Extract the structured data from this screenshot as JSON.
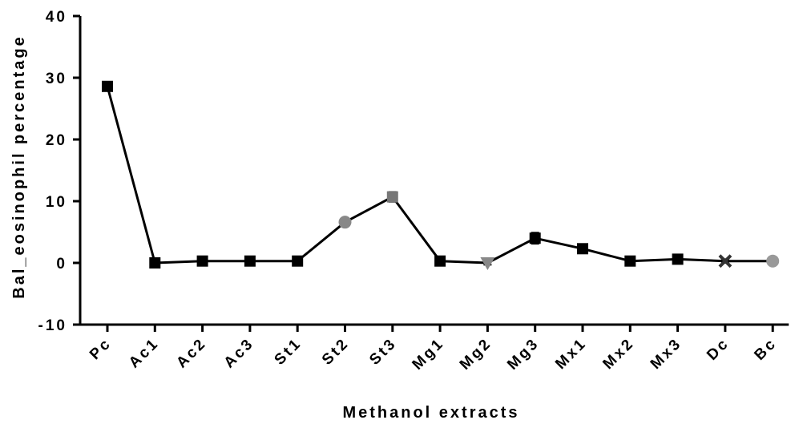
{
  "chart_data": {
    "type": "line",
    "title": "",
    "xlabel": "Methanol extracts",
    "ylabel": "Bal_eosinophil percentage",
    "ylim": [
      -10,
      40
    ],
    "yticks": [
      -10,
      0,
      10,
      20,
      30,
      40
    ],
    "categories": [
      "Pc",
      "Ac1",
      "Ac2",
      "Ac3",
      "St1",
      "St2",
      "St3",
      "Mg1",
      "Mg2",
      "Mg3",
      "Mx1",
      "Mx2",
      "Mx3",
      "Dc",
      "Bc"
    ],
    "values": [
      28.6,
      0.0,
      0.3,
      0.3,
      0.3,
      6.6,
      10.7,
      0.3,
      0.0,
      4.0,
      2.3,
      0.3,
      0.6,
      0.3,
      0.3
    ],
    "errors": [
      0.5,
      0.4,
      0.4,
      0.4,
      0.4,
      0.5,
      0.8,
      0.4,
      0.3,
      0.9,
      0.5,
      0.3,
      0.4,
      0.3,
      0.3
    ],
    "markers": [
      "square",
      "square",
      "square",
      "square",
      "square",
      "circle",
      "square",
      "square",
      "triangle-down",
      "square",
      "square",
      "square",
      "square",
      "cross",
      "circle"
    ],
    "marker_colors": [
      "#000000",
      "#000000",
      "#000000",
      "#000000",
      "#000000",
      "#888888",
      "#777777",
      "#000000",
      "#888888",
      "#000000",
      "#000000",
      "#000000",
      "#000000",
      "#333333",
      "#999999"
    ],
    "line_color": "#000000",
    "grid": false,
    "legend": "none"
  }
}
